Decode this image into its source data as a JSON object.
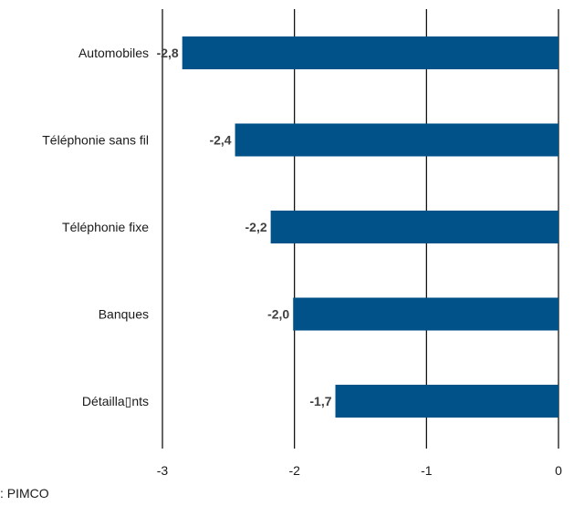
{
  "chart_data": {
    "type": "bar",
    "orientation": "horizontal",
    "categories": [
      "Automobiles",
      "Téléphonie sans fil",
      "Téléphonie fixe",
      "Banques",
      "Détailla▯nts"
    ],
    "values": [
      -2.85,
      -2.45,
      -2.18,
      -2.01,
      -1.69
    ],
    "value_labels": [
      "-2,8",
      "-2,4",
      "-2,2",
      "-2,0",
      "-1,7"
    ],
    "xlim": [
      -3,
      0
    ],
    "xticks": [
      -3,
      -2,
      -1,
      0
    ],
    "xtick_labels": [
      "-3",
      "-2",
      "-1",
      "0"
    ],
    "grid": "vertical",
    "title": "",
    "xlabel": "",
    "ylabel": "",
    "bar_color": "#02528a"
  },
  "footer": {
    "source": ": PIMCO"
  }
}
